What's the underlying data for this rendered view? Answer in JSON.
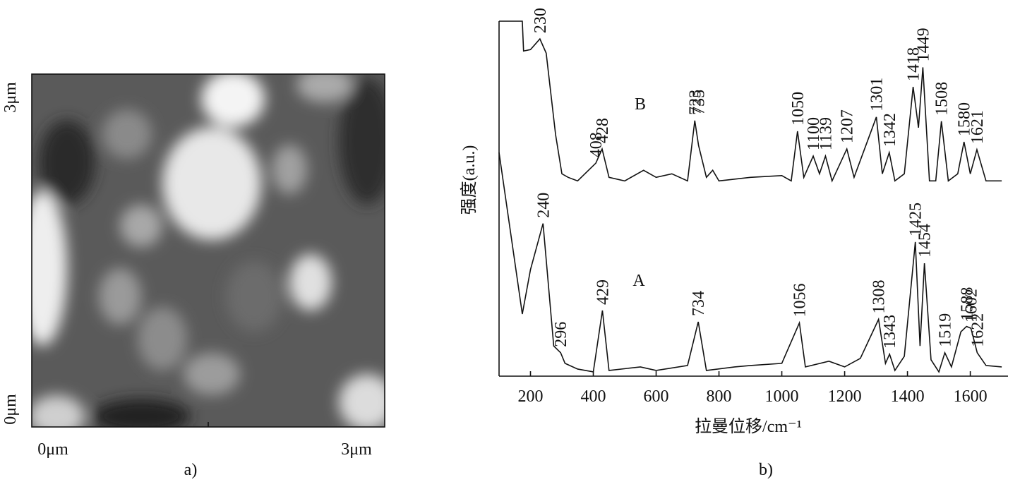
{
  "image": {
    "y_top_label": "3μm",
    "y_bottom_label": "0μm",
    "x_left_label": "0μm",
    "x_right_label": "3μm",
    "caption": "a)"
  },
  "chart_data": {
    "type": "line",
    "caption": "b)",
    "x_label": "拉曼位移/cm⁻¹",
    "y_label": "强度(a.u.)",
    "xlim": [
      100,
      1720
    ],
    "xticks": [
      200,
      400,
      600,
      800,
      1000,
      1200,
      1400,
      1600
    ],
    "ylim": [
      0,
      100
    ],
    "series": [
      {
        "name": "A",
        "color": "#111111",
        "x": [
          100,
          174,
          200,
          240,
          274,
          296,
          310,
          350,
          400,
          429,
          450,
          550,
          600,
          700,
          734,
          760,
          850,
          900,
          1000,
          1056,
          1075,
          1150,
          1200,
          1250,
          1308,
          1330,
          1343,
          1360,
          1390,
          1425,
          1440,
          1454,
          1475,
          1500,
          1519,
          1540,
          1570,
          1588,
          1602,
          1622,
          1650,
          1700
        ],
        "values": [
          63,
          17.5,
          30,
          43,
          8.5,
          6.6,
          3.6,
          2,
          1.2,
          18.5,
          1.6,
          2.6,
          1.6,
          3,
          15.3,
          1.6,
          2.6,
          3,
          3.6,
          15,
          2.6,
          4.2,
          2.6,
          5,
          16,
          3.6,
          6.2,
          1.6,
          5.6,
          37.8,
          8.5,
          31.8,
          4.6,
          1.2,
          6.6,
          2.6,
          12.5,
          14,
          13.5,
          6.6,
          3,
          2.6
        ],
        "peaks": [
          240,
          296,
          429,
          734,
          1056,
          1308,
          1343,
          1425,
          1454,
          1519,
          1588,
          1602,
          1622
        ]
      },
      {
        "name": "B",
        "color": "#111111",
        "x": [
          100,
          174,
          178,
          200,
          230,
          250,
          280,
          300,
          320,
          350,
          408,
          428,
          450,
          500,
          560,
          600,
          650,
          700,
          723,
          735,
          760,
          780,
          800,
          900,
          1000,
          1030,
          1050,
          1070,
          1100,
          1120,
          1139,
          1160,
          1207,
          1230,
          1301,
          1320,
          1342,
          1360,
          1390,
          1418,
          1435,
          1449,
          1470,
          1490,
          1508,
          1530,
          1560,
          1580,
          1600,
          1621,
          1650,
          1700
        ],
        "values": [
          100,
          100,
          91.6,
          92,
          95,
          91,
          68,
          57,
          56,
          55,
          60,
          64,
          56,
          55,
          58,
          56,
          57,
          55,
          72,
          65,
          56,
          58,
          55,
          56,
          56.5,
          55,
          69,
          56,
          62,
          57,
          62,
          55,
          64,
          56,
          73,
          57,
          63,
          55,
          57,
          81.5,
          70,
          87,
          55,
          55,
          71.8,
          55,
          57,
          66,
          57,
          63.8,
          55,
          55
        ],
        "peaks": [
          230,
          408,
          428,
          723,
          735,
          1050,
          1100,
          1139,
          1207,
          1301,
          1342,
          1418,
          1449,
          1508,
          1580,
          1621
        ]
      }
    ]
  }
}
